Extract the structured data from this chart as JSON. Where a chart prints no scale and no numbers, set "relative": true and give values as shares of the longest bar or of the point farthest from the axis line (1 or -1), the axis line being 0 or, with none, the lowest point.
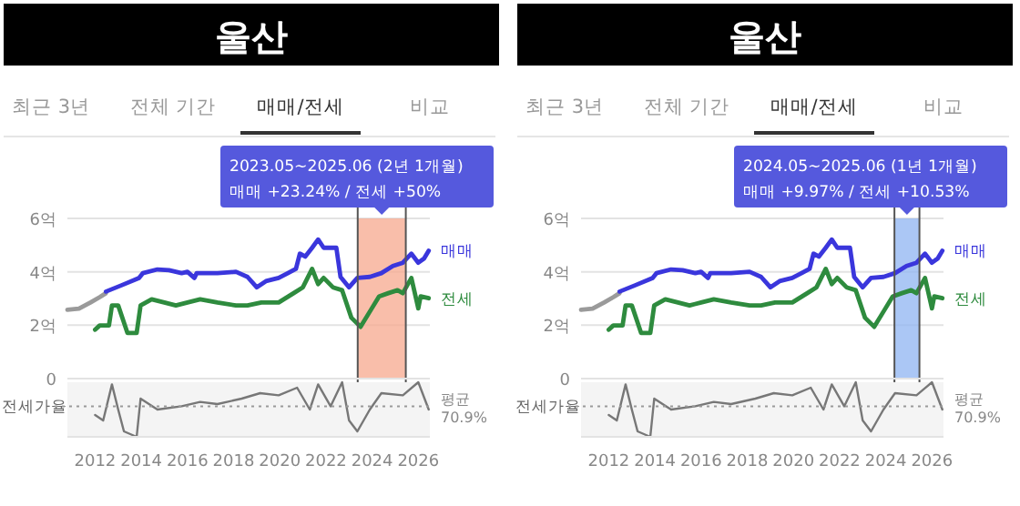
{
  "chart_data": [
    {
      "type": "line",
      "title": "울산",
      "annotations": [
        "최근 3년",
        "전체 기간",
        "매매/전세",
        "비교",
        "2023.05~2025.06 (2년 1개월)",
        "매매 +23.24%  /  전세 +50%"
      ],
      "xlim": [
        2010.8,
        2026.5
      ],
      "ylim": [
        0,
        6
      ],
      "yticks": [
        0,
        {
          "value": 2,
          "label": "2억"
        },
        {
          "value": 4,
          "label": "4억"
        },
        {
          "value": 6,
          "label": "6억"
        }
      ],
      "tick_labels": "y",
      "grid": "y",
      "legend": "right",
      "bands": [
        {
          "axis": "x",
          "from": 2023.375,
          "to": 2025.458,
          "color": "#f7a88e"
        }
      ],
      "ref_lines": [
        {
          "axis": "x",
          "value": 2023.375
        },
        {
          "axis": "x",
          "value": 2025.458
        }
      ],
      "series": [
        {
          "color": "#9a9a9a",
          "x": [
            2010.8,
            2011.3,
            2011.8,
            2012.2,
            2012.47
          ],
          "values": [
            2.58,
            2.62,
            2.85,
            3.05,
            3.2
          ]
        },
        {
          "name": "매매",
          "color": "#3a36dc",
          "x": [
            2012.47,
            2013.13,
            2013.9,
            2014.07,
            2014.7,
            2015.2,
            2015.75,
            2016.0,
            2016.3,
            2016.4,
            2017.3,
            2018.1,
            2018.6,
            2019.0,
            2019.4,
            2019.95,
            2020.35,
            2020.7,
            2020.87,
            2021.1,
            2021.4,
            2021.66,
            2021.9,
            2022.2,
            2022.45,
            2022.63,
            2023.0,
            2023.36,
            2023.9,
            2024.4,
            2024.9,
            2025.33,
            2025.7,
            2026.0,
            2026.25,
            2026.45
          ],
          "values": [
            3.26,
            3.49,
            3.77,
            3.95,
            4.09,
            4.06,
            3.95,
            4.0,
            3.77,
            3.95,
            3.95,
            4.0,
            3.81,
            3.42,
            3.65,
            3.77,
            3.95,
            4.11,
            4.68,
            4.57,
            4.9,
            5.21,
            4.9,
            4.9,
            4.9,
            3.81,
            3.42,
            3.77,
            3.81,
            3.95,
            4.22,
            4.34,
            4.68,
            4.34,
            4.5,
            4.79
          ]
        },
        {
          "name": "전세",
          "color": "#2e8b3e",
          "x": [
            2012.0,
            2012.2,
            2012.6,
            2012.73,
            2013.0,
            2013.4,
            2013.8,
            2013.97,
            2014.45,
            2015.0,
            2015.5,
            2016.0,
            2016.55,
            2017.3,
            2018.1,
            2018.6,
            2019.2,
            2019.95,
            2020.6,
            2021.0,
            2021.4,
            2021.66,
            2021.9,
            2022.3,
            2022.7,
            2023.1,
            2023.5,
            2023.9,
            2024.3,
            2024.7,
            2025.1,
            2025.33,
            2025.7,
            2026.0,
            2026.1,
            2026.45
          ],
          "values": [
            1.83,
            1.99,
            1.99,
            2.74,
            2.74,
            1.71,
            1.71,
            2.74,
            2.97,
            2.85,
            2.74,
            2.85,
            2.97,
            2.85,
            2.74,
            2.74,
            2.85,
            2.85,
            3.2,
            3.42,
            4.11,
            3.54,
            3.77,
            3.42,
            3.31,
            2.28,
            1.94,
            2.51,
            3.08,
            3.2,
            3.31,
            3.2,
            3.77,
            2.63,
            3.08,
            3.01
          ]
        }
      ]
    },
    {
      "type": "line",
      "relative": true,
      "ylabel": "전세가율",
      "xlim": [
        2010.8,
        2026.5
      ],
      "xticks": [
        2012,
        2014,
        2016,
        2018,
        2020,
        2022,
        2024,
        2026
      ],
      "tick_labels": "x",
      "ref_lines": [
        {
          "axis": "y",
          "value": 0.56,
          "label": "평균 70.9%",
          "line_style": "dotted"
        }
      ],
      "series": [
        {
          "color": "#777777",
          "x": [
            2012.0,
            2012.35,
            2012.73,
            2013.0,
            2013.25,
            2013.8,
            2013.97,
            2014.7,
            2015.75,
            2016.55,
            2017.3,
            2018.35,
            2019.15,
            2019.95,
            2020.75,
            2021.3,
            2021.66,
            2022.2,
            2022.7,
            2023.0,
            2023.36,
            2023.9,
            2024.4,
            2025.33,
            2026.0,
            2026.45
          ],
          "values": [
            0.4,
            0.3,
            0.96,
            0.5,
            0.1,
            0,
            0.7,
            0.5,
            0.56,
            0.64,
            0.6,
            0.7,
            0.8,
            0.76,
            0.9,
            0.5,
            0.96,
            0.56,
            1,
            0.3,
            0.1,
            0.5,
            0.8,
            0.76,
            1,
            0.5
          ]
        }
      ]
    },
    {
      "type": "line",
      "title": "울산",
      "annotations": [
        "최근 3년",
        "전체 기간",
        "매매/전세",
        "비교",
        "2024.05~2025.06 (1년 1개월)",
        "매매 +9.97%  /  전세 +10.53%"
      ],
      "xlim": [
        2010.8,
        2026.5
      ],
      "ylim": [
        0,
        6
      ],
      "yticks": [
        0,
        {
          "value": 2,
          "label": "2억"
        },
        {
          "value": 4,
          "label": "4억"
        },
        {
          "value": 6,
          "label": "6억"
        }
      ],
      "tick_labels": "y",
      "grid": "y",
      "legend": "right",
      "bands": [
        {
          "axis": "x",
          "from": 2024.375,
          "to": 2025.458,
          "color": "#8fb4f2"
        }
      ],
      "ref_lines": [
        {
          "axis": "x",
          "value": 2024.375
        },
        {
          "axis": "x",
          "value": 2025.458
        }
      ],
      "series": [
        {
          "color": "#9a9a9a",
          "x": [
            2010.8,
            2011.3,
            2011.8,
            2012.2,
            2012.47
          ],
          "values": [
            2.58,
            2.62,
            2.85,
            3.05,
            3.2
          ]
        },
        {
          "name": "매매",
          "color": "#3a36dc",
          "x": [
            2012.47,
            2013.13,
            2013.9,
            2014.07,
            2014.7,
            2015.2,
            2015.75,
            2016.0,
            2016.3,
            2016.4,
            2017.3,
            2018.1,
            2018.6,
            2019.0,
            2019.4,
            2019.95,
            2020.35,
            2020.7,
            2020.87,
            2021.1,
            2021.4,
            2021.66,
            2021.9,
            2022.2,
            2022.45,
            2022.63,
            2023.0,
            2023.36,
            2023.9,
            2024.4,
            2024.9,
            2025.33,
            2025.7,
            2026.0,
            2026.25,
            2026.45
          ],
          "values": [
            3.26,
            3.49,
            3.77,
            3.95,
            4.09,
            4.06,
            3.95,
            4.0,
            3.77,
            3.95,
            3.95,
            4.0,
            3.81,
            3.42,
            3.65,
            3.77,
            3.95,
            4.11,
            4.68,
            4.57,
            4.9,
            5.21,
            4.9,
            4.9,
            4.9,
            3.81,
            3.42,
            3.77,
            3.81,
            3.95,
            4.22,
            4.34,
            4.68,
            4.34,
            4.5,
            4.79
          ]
        },
        {
          "name": "전세",
          "color": "#2e8b3e",
          "x": [
            2012.0,
            2012.2,
            2012.6,
            2012.73,
            2013.0,
            2013.4,
            2013.8,
            2013.97,
            2014.45,
            2015.0,
            2015.5,
            2016.0,
            2016.55,
            2017.3,
            2018.1,
            2018.6,
            2019.2,
            2019.95,
            2020.6,
            2021.0,
            2021.4,
            2021.66,
            2021.9,
            2022.3,
            2022.7,
            2023.1,
            2023.5,
            2023.9,
            2024.3,
            2024.7,
            2025.1,
            2025.33,
            2025.7,
            2026.0,
            2026.1,
            2026.45
          ],
          "values": [
            1.83,
            1.99,
            1.99,
            2.74,
            2.74,
            1.71,
            1.71,
            2.74,
            2.97,
            2.85,
            2.74,
            2.85,
            2.97,
            2.85,
            2.74,
            2.74,
            2.85,
            2.85,
            3.2,
            3.42,
            4.11,
            3.54,
            3.77,
            3.42,
            3.31,
            2.28,
            1.94,
            2.51,
            3.08,
            3.2,
            3.31,
            3.2,
            3.77,
            2.63,
            3.08,
            3.01
          ]
        }
      ]
    },
    {
      "type": "line",
      "relative": true,
      "ylabel": "전세가율",
      "xlim": [
        2010.8,
        2026.5
      ],
      "xticks": [
        2012,
        2014,
        2016,
        2018,
        2020,
        2022,
        2024,
        2026
      ],
      "tick_labels": "x",
      "ref_lines": [
        {
          "axis": "y",
          "value": 0.56,
          "label": "평균 70.9%",
          "line_style": "dotted"
        }
      ],
      "series": [
        {
          "color": "#777777",
          "x": [
            2012.0,
            2012.35,
            2012.73,
            2013.0,
            2013.25,
            2013.8,
            2013.97,
            2014.7,
            2015.75,
            2016.55,
            2017.3,
            2018.35,
            2019.15,
            2019.95,
            2020.75,
            2021.3,
            2021.66,
            2022.2,
            2022.7,
            2023.0,
            2023.36,
            2023.9,
            2024.4,
            2025.33,
            2026.0,
            2026.45
          ],
          "values": [
            0.4,
            0.3,
            0.96,
            0.5,
            0.1,
            0,
            0.7,
            0.5,
            0.56,
            0.64,
            0.6,
            0.7,
            0.8,
            0.76,
            0.9,
            0.5,
            0.96,
            0.56,
            1,
            0.3,
            0.1,
            0.5,
            0.8,
            0.76,
            1,
            0.5
          ]
        }
      ]
    }
  ]
}
